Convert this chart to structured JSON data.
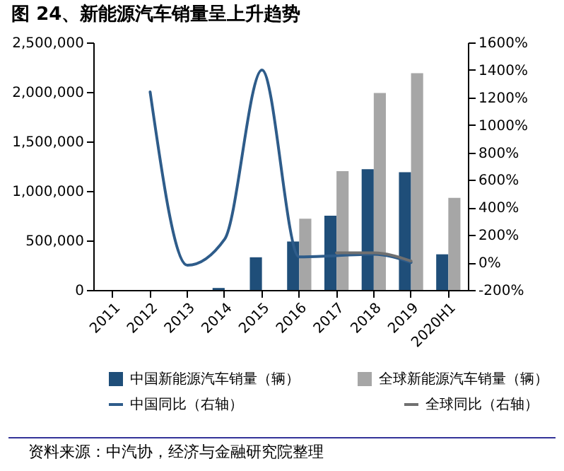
{
  "chart_data": {
    "type": "bar",
    "title": "图 24、新能源汽车销量呈上升趋势",
    "categories": [
      "2011",
      "2012",
      "2013",
      "2014",
      "2015",
      "2016",
      "2017",
      "2018",
      "2019",
      "2020H1"
    ],
    "series": [
      {
        "name": "中国新能源汽车销量（辆）",
        "type": "bar",
        "color": "#1f4e79",
        "values": [
          null,
          null,
          null,
          20000,
          330000,
          490000,
          750000,
          1220000,
          1190000,
          360000
        ]
      },
      {
        "name": "全球新能源汽车销量（辆）",
        "type": "bar",
        "color": "#a6a6a6",
        "values": [
          null,
          null,
          null,
          null,
          null,
          720000,
          1200000,
          1990000,
          2190000,
          930000
        ]
      },
      {
        "name": "中国同比（右轴）",
        "type": "line",
        "axis": "y2",
        "color": "#2e5c8a",
        "values": [
          null,
          1240,
          -20,
          170,
          1400,
          40,
          50,
          60,
          0,
          null
        ]
      },
      {
        "name": "全球同比（右轴）",
        "type": "line",
        "axis": "y2",
        "color": "#707070",
        "values": [
          null,
          null,
          null,
          null,
          null,
          null,
          70,
          70,
          10,
          null
        ]
      }
    ],
    "ylim": [
      0,
      2500000
    ],
    "yticks": [
      {
        "value": 0,
        "label": "0"
      },
      {
        "value": 500000,
        "label": "500,000"
      },
      {
        "value": 1000000,
        "label": "1,000,000"
      },
      {
        "value": 1500000,
        "label": "1,500,000"
      },
      {
        "value": 2000000,
        "label": "2,000,000"
      },
      {
        "value": 2500000,
        "label": "2,500,000"
      }
    ],
    "y2lim": [
      -200,
      1600
    ],
    "y2ticks": [
      {
        "value": -200,
        "label": "-200%"
      },
      {
        "value": 0,
        "label": "0%"
      },
      {
        "value": 200,
        "label": "200%"
      },
      {
        "value": 400,
        "label": "400%"
      },
      {
        "value": 600,
        "label": "600%"
      },
      {
        "value": 800,
        "label": "800%"
      },
      {
        "value": 1000,
        "label": "1000%"
      },
      {
        "value": 1200,
        "label": "1200%"
      },
      {
        "value": 1400,
        "label": "1400%"
      },
      {
        "value": 1600,
        "label": "1600%"
      }
    ],
    "grid": false,
    "legend": "bottom",
    "annotations": [
      "资料来源：中汽协，经济与金融研究院整理"
    ]
  }
}
